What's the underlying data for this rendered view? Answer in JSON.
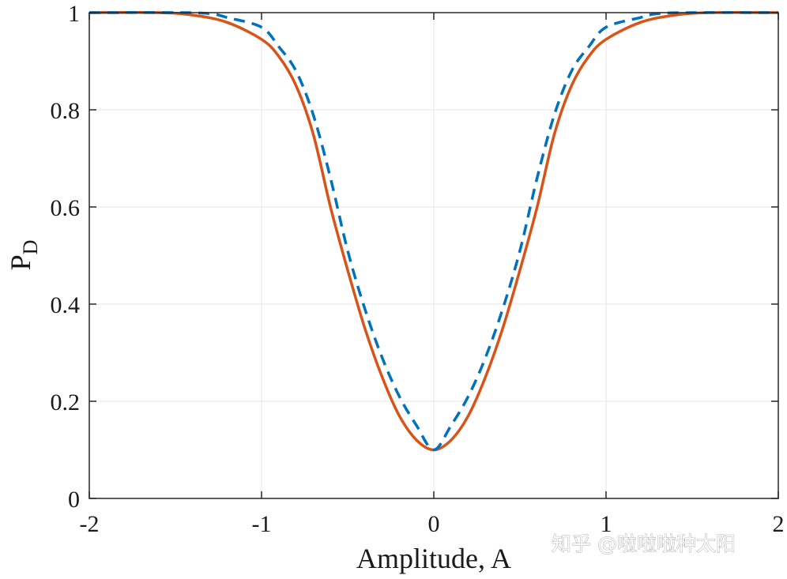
{
  "chart_data": {
    "type": "line",
    "xlabel": "Amplitude, A",
    "ylabel_main": "P",
    "ylabel_sub": "D",
    "xlim": [
      -2,
      2
    ],
    "ylim": [
      0,
      1
    ],
    "x_ticks": [
      "-2",
      "-1",
      "0",
      "1",
      "2"
    ],
    "y_ticks": [
      "0",
      "0.2",
      "0.4",
      "0.6",
      "0.8",
      "1"
    ],
    "grid": true,
    "series": [
      {
        "color": "#D95319",
        "style": "solid",
        "x": [
          -2.0,
          -1.6,
          -1.4,
          -1.2,
          -1.0,
          -0.9,
          -0.8,
          -0.7,
          -0.6,
          -0.5,
          -0.4,
          -0.3,
          -0.2,
          -0.1,
          0.0,
          0.1,
          0.2,
          0.3,
          0.4,
          0.5,
          0.6,
          0.7,
          0.8,
          0.9,
          1.0,
          1.2,
          1.4,
          1.6,
          2.0
        ],
        "y": [
          1.0,
          1.0,
          0.995,
          0.98,
          0.945,
          0.91,
          0.85,
          0.75,
          0.6,
          0.47,
          0.35,
          0.25,
          0.17,
          0.12,
          0.1,
          0.12,
          0.17,
          0.25,
          0.35,
          0.47,
          0.6,
          0.75,
          0.85,
          0.91,
          0.945,
          0.98,
          0.995,
          1.0,
          1.0
        ]
      },
      {
        "color": "#0072BD",
        "style": "dashed",
        "x": [
          -2.0,
          -1.5,
          -1.3,
          -1.2,
          -1.0,
          -0.9,
          -0.8,
          -0.7,
          -0.6,
          -0.5,
          -0.4,
          -0.3,
          -0.2,
          -0.1,
          0.0,
          0.1,
          0.2,
          0.3,
          0.4,
          0.5,
          0.6,
          0.7,
          0.8,
          0.9,
          1.0,
          1.2,
          1.3,
          1.5,
          2.0
        ],
        "y": [
          1.0,
          1.0,
          0.998,
          0.99,
          0.97,
          0.93,
          0.88,
          0.79,
          0.66,
          0.51,
          0.39,
          0.29,
          0.21,
          0.15,
          0.1,
          0.15,
          0.21,
          0.29,
          0.39,
          0.51,
          0.66,
          0.79,
          0.88,
          0.93,
          0.97,
          0.99,
          0.998,
          1.0,
          1.0
        ]
      }
    ]
  },
  "watermark": "知乎 @啦啦啦种太阳",
  "colors": {
    "axis": "#262626",
    "grid": "#e6e6e6"
  }
}
